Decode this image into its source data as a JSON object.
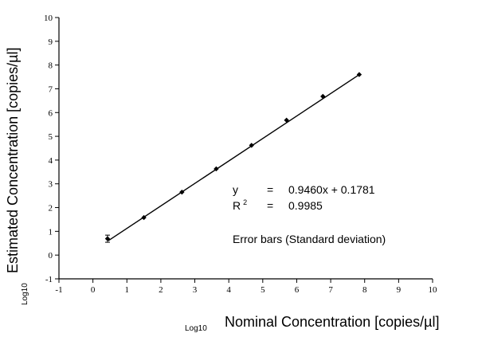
{
  "chart_data": {
    "type": "scatter",
    "title": "",
    "xlabel": "Nominal Concentration [copies/µl]",
    "xlabel_prefix": "Log10",
    "ylabel": "Estimated Concentration [copies/µl]",
    "ylabel_prefix": "Log10",
    "xlim": [
      -1,
      10
    ],
    "ylim": [
      -1,
      10
    ],
    "x_ticks": [
      "-1",
      "0",
      "1",
      "2",
      "3",
      "4",
      "5",
      "6",
      "7",
      "8",
      "9",
      "10"
    ],
    "y_ticks": [
      "-1",
      "0",
      "1",
      "2",
      "3",
      "4",
      "5",
      "6",
      "7",
      "8",
      "9",
      "10"
    ],
    "grid": false,
    "points": [
      {
        "x": 0.43,
        "y": 0.69,
        "err": 0.15
      },
      {
        "x": 1.5,
        "y": 1.58,
        "err": 0.03
      },
      {
        "x": 2.62,
        "y": 2.65,
        "err": 0.03
      },
      {
        "x": 3.63,
        "y": 3.63,
        "err": 0.03
      },
      {
        "x": 4.67,
        "y": 4.62,
        "err": 0.03
      },
      {
        "x": 5.7,
        "y": 5.68,
        "err": 0.03
      },
      {
        "x": 6.77,
        "y": 6.68,
        "err": 0.03
      },
      {
        "x": 7.84,
        "y": 7.6,
        "err": 0.03
      }
    ],
    "fit_line": {
      "slope": 0.946,
      "intercept": 0.1781,
      "x_range": [
        0.45,
        7.84
      ]
    },
    "marker_color": "#000000",
    "annotations": {
      "eq_y": "y",
      "eq_y_sign": "=",
      "eq_y_value": "0.9460x + 0.1781",
      "eq_r2_base": "R",
      "eq_r2_sup": "2",
      "eq_r2_sign": "=",
      "eq_r2_value": "0.9985",
      "error_bars_note": "Error bars (Standard deviation)"
    }
  }
}
